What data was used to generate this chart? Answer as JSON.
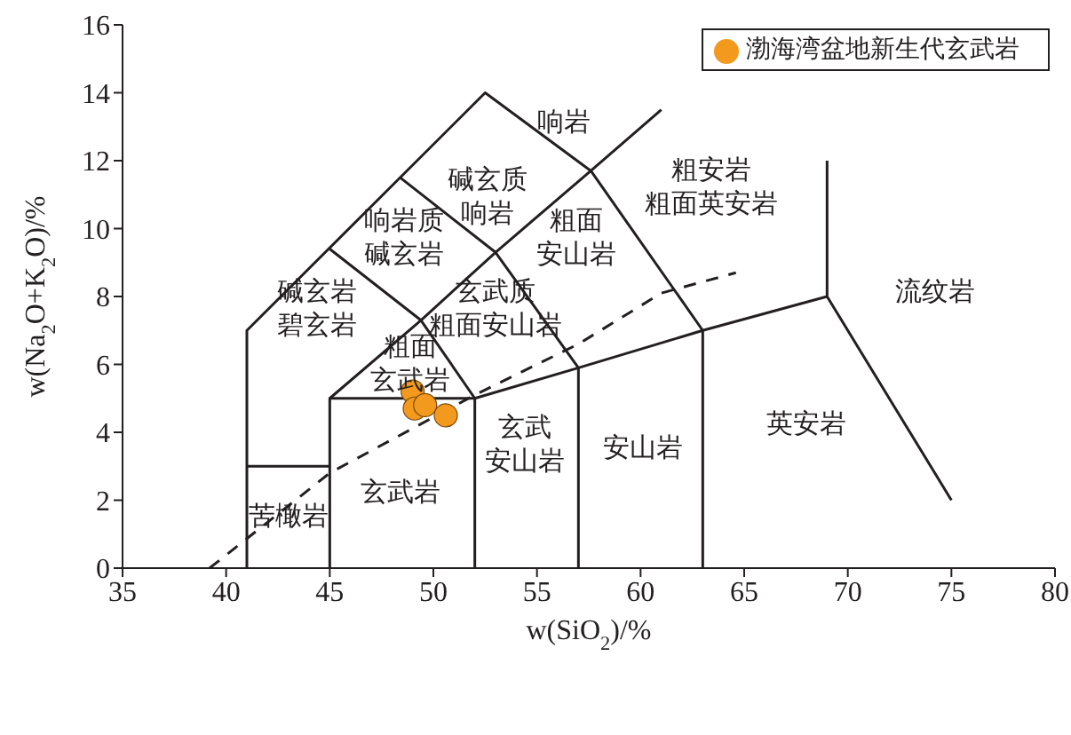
{
  "chart_data": {
    "type": "scatter",
    "xlabel": "w(SiO$_{2}$)/%",
    "ylabel": "w(Na$_{2}$O+K$_{2}$O)/%",
    "xlim": [
      35,
      80
    ],
    "xticks": [
      35,
      40,
      45,
      50,
      55,
      60,
      65,
      70,
      75,
      80
    ],
    "ylim": [
      0,
      16
    ],
    "yticks": [
      0,
      2,
      4,
      6,
      8,
      10,
      12,
      14,
      16
    ],
    "grid": false,
    "legend": "top right",
    "series": [
      {
        "name": "渤海湾盆地新生代玄武岩",
        "color": "#f39a1e",
        "marker": "circle",
        "x": [
          49.0,
          49.1,
          49.6,
          50.6
        ],
        "values": [
          5.2,
          4.7,
          4.8,
          4.5
        ]
      },
      {
        "type": "line",
        "color": "#231f20",
        "marker": "none",
        "line_style": "solid",
        "x": [
          41,
          41,
          52.5,
          57.6,
          61
        ],
        "values": [
          0,
          7,
          14,
          11.7,
          13.5
        ]
      },
      {
        "type": "line",
        "color": "#231f20",
        "marker": "none",
        "line_style": "solid",
        "x": [
          45,
          45,
          52,
          57,
          63,
          69,
          69
        ],
        "values": [
          0,
          5,
          5,
          5.9,
          7,
          8,
          12
        ]
      },
      {
        "type": "line",
        "color": "#231f20",
        "marker": "none",
        "line_style": "solid",
        "x": [
          45,
          49.4,
          53,
          57.6
        ],
        "values": [
          5,
          7.3,
          9.3,
          11.7
        ]
      },
      {
        "type": "line",
        "color": "#231f20",
        "marker": "none",
        "line_style": "solid",
        "x": [
          52,
          52,
          49.4,
          45
        ],
        "values": [
          0,
          5,
          7.3,
          9.4
        ]
      },
      {
        "type": "line",
        "color": "#231f20",
        "marker": "none",
        "line_style": "solid",
        "x": [
          57,
          57,
          53,
          48.4
        ],
        "values": [
          0,
          5.9,
          9.3,
          11.5
        ]
      },
      {
        "type": "line",
        "color": "#231f20",
        "marker": "none",
        "line_style": "solid",
        "x": [
          63,
          63,
          57.6
        ],
        "values": [
          0,
          7,
          11.7
        ]
      },
      {
        "type": "line",
        "color": "#231f20",
        "marker": "none",
        "line_style": "solid",
        "x": [
          69,
          75
        ],
        "values": [
          8,
          2
        ]
      },
      {
        "type": "line",
        "color": "#231f20",
        "marker": "none",
        "line_style": "solid",
        "x": [
          41,
          45
        ],
        "values": [
          3,
          3
        ]
      },
      {
        "type": "line",
        "color": "#231f20",
        "marker": "none",
        "line_style": "dashed",
        "x": [
          39.2,
          45,
          52,
          57,
          61,
          64.6
        ],
        "values": [
          0,
          2.8,
          5.1,
          6.6,
          8.1,
          8.7
        ]
      }
    ],
    "annotations": [
      "响岩",
      "碱玄质响岩",
      "粗安岩粗面英安岩",
      "响岩质碱玄岩",
      "粗面安山岩",
      "碱玄岩碧玄岩",
      "玄武质粗面安山岩",
      "粗面玄武岩",
      "流纹岩",
      "英安岩",
      "安山岩",
      "玄武安山岩",
      "玄武岩",
      "苦橄岩"
    ]
  }
}
